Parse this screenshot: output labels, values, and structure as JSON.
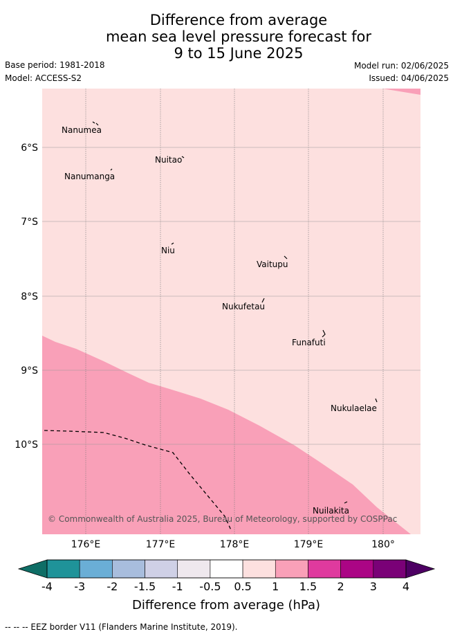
{
  "title": {
    "line1": "Difference from average",
    "line2": "mean sea level pressure forecast for",
    "line3": "9 to 15 June 2025"
  },
  "meta": {
    "base_period": "Base period: 1981-2018",
    "model": "Model: ACCESS-S2",
    "model_run": "Model run: 02/06/2025",
    "issued": "Issued: 04/06/2025"
  },
  "map": {
    "lon_range": [
      175.42,
      180.5
    ],
    "lat_range": [
      -11.2,
      -5.2
    ],
    "lon_ticks": [
      "176°E",
      "177°E",
      "178°E",
      "179°E",
      "180°"
    ],
    "lat_ticks": [
      "6°S",
      "7°S",
      "8°S",
      "9°S",
      "10°S"
    ],
    "places": [
      {
        "name": "Nanumea"
      },
      {
        "name": "Nuitao"
      },
      {
        "name": "Nanumanga"
      },
      {
        "name": "Niu"
      },
      {
        "name": "Vaitupu"
      },
      {
        "name": "Nukufetau"
      },
      {
        "name": "Funafuti"
      },
      {
        "name": "Nukulaelae"
      },
      {
        "name": "Nuilakita"
      }
    ],
    "copyright": "© Commonwealth of Australia 2025, Bureau of Meteorology, supported by COSPPac",
    "fill_colors": {
      "anomaly_0_5_to_1": "#fde0df",
      "anomaly_1_to_1_5": "#f9a0b8"
    }
  },
  "colorbar": {
    "labels": [
      "-4",
      "-3",
      "-2",
      "-1.5",
      "-1",
      "-0.5",
      "0.5",
      "1",
      "1.5",
      "2",
      "3",
      "4"
    ],
    "colors": [
      "#0f6e66",
      "#1f9399",
      "#6aaed6",
      "#a8bddd",
      "#cfd0e6",
      "#efe8ee",
      "#ffffff",
      "#fde0df",
      "#f9a0b8",
      "#df3a9e",
      "#ab0585",
      "#7a0177",
      "#4d0063"
    ],
    "title": "Difference from average (hPa)"
  },
  "footer": "-- -- -- EEZ border V11 (Flanders Marine Institute, 2019)."
}
